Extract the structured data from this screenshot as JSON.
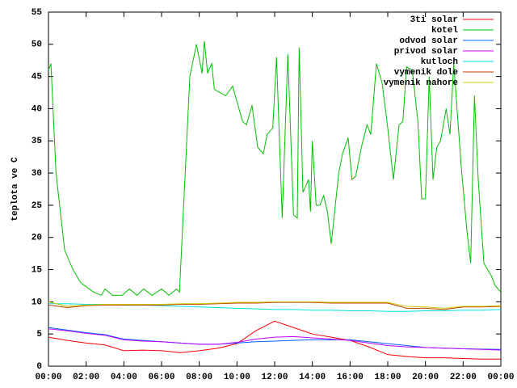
{
  "chart_data": {
    "type": "line",
    "ylabel": "teplota ve C",
    "x": [
      0,
      1,
      2,
      3,
      4,
      5,
      6,
      7,
      8,
      9,
      10,
      11,
      12,
      13,
      14,
      15,
      16,
      17,
      18,
      19,
      20,
      21,
      22,
      23,
      24
    ],
    "xlim": [
      0,
      24
    ],
    "xticks": [
      {
        "value": 0,
        "label": "00:00"
      },
      {
        "value": 2,
        "label": "02:00"
      },
      {
        "value": 4,
        "label": "04:00"
      },
      {
        "value": 6,
        "label": "06:00"
      },
      {
        "value": 8,
        "label": "08:00"
      },
      {
        "value": 10,
        "label": "10:00"
      },
      {
        "value": 12,
        "label": "12:00"
      },
      {
        "value": 14,
        "label": "14:00"
      },
      {
        "value": 16,
        "label": "16:00"
      },
      {
        "value": 18,
        "label": "18:00"
      },
      {
        "value": 20,
        "label": "20:00"
      },
      {
        "value": 22,
        "label": "22:00"
      },
      {
        "value": 24,
        "label": "00:00"
      }
    ],
    "ylim": [
      0,
      55
    ],
    "yticks": [
      0,
      5,
      10,
      15,
      20,
      25,
      30,
      35,
      40,
      45,
      50,
      55
    ],
    "legend": "top-right",
    "series": [
      {
        "name": "3ti solar",
        "color": "#ff0000",
        "values": [
          4.5,
          4,
          3.6,
          3.3,
          2.4,
          2.5,
          2.4,
          2.1,
          2.4,
          2.8,
          3.5,
          5.5,
          7,
          6,
          5,
          4.5,
          4,
          3,
          1.8,
          1.5,
          1.3,
          1.3,
          1.2,
          1.1,
          1.1
        ]
      },
      {
        "name": "kotel",
        "color": "#00c000",
        "x": [
          0,
          0.13,
          0.4,
          0.86,
          1.3,
          1.7,
          2.4,
          2.8,
          3.0,
          3.4,
          3.9,
          4.3,
          4.7,
          5.05,
          5.5,
          6.0,
          6.4,
          6.8,
          6.95,
          7.5,
          7.85,
          8.15,
          8.27,
          8.44,
          8.66,
          8.8,
          9.4,
          9.77,
          10.3,
          10.5,
          10.8,
          11.1,
          11.4,
          11.6,
          11.9,
          12.1,
          12.4,
          12.7,
          13.0,
          13.2,
          13.3,
          13.5,
          13.8,
          13.9,
          14.0,
          14.2,
          14.4,
          14.6,
          14.8,
          15.0,
          15.4,
          15.6,
          15.9,
          16.1,
          16.3,
          16.6,
          16.9,
          17.1,
          17.4,
          17.7,
          18.0,
          18.3,
          18.6,
          18.8,
          19.0,
          19.3,
          19.6,
          19.8,
          20.0,
          20.2,
          20.4,
          20.6,
          20.8,
          21.1,
          21.3,
          21.5,
          21.9,
          22.2,
          22.4,
          22.6,
          22.8,
          23.1,
          23.5,
          23.7,
          24.0
        ],
        "values": [
          46,
          47,
          30,
          18,
          15,
          13,
          11.5,
          11,
          12,
          11,
          11,
          12,
          11,
          12,
          11,
          12,
          11,
          12,
          11.5,
          45,
          50,
          45.5,
          50.5,
          45.5,
          47,
          43,
          42,
          43.5,
          38,
          37.5,
          40.5,
          34,
          33,
          36,
          37,
          48,
          23,
          48.5,
          23.5,
          23,
          49.5,
          27,
          29,
          24,
          35,
          25,
          25,
          26.5,
          24,
          19,
          30,
          33,
          35.5,
          29,
          29.5,
          34,
          37.5,
          36,
          47,
          44,
          37,
          29,
          37.5,
          38,
          46.5,
          46,
          38,
          26,
          26,
          45,
          29,
          34,
          35,
          40,
          36,
          47,
          31,
          21,
          16,
          42,
          29,
          16,
          14,
          12.5,
          11.5
        ]
      },
      {
        "name": "odvod solar",
        "color": "#0060ff",
        "values": [
          6,
          5.6,
          5.2,
          4.9,
          4.2,
          4,
          3.8,
          3.6,
          3.4,
          3.4,
          3.6,
          3.8,
          3.9,
          4,
          4.1,
          4.1,
          4.1,
          3.8,
          3.5,
          3.2,
          2.9,
          2.8,
          2.7,
          2.65,
          2.6
        ]
      },
      {
        "name": "privod solar",
        "color": "#c000ff",
        "values": [
          5.8,
          5.5,
          5.1,
          4.8,
          4.1,
          3.9,
          3.8,
          3.6,
          3.4,
          3.4,
          3.7,
          4.2,
          4.5,
          4.6,
          4.4,
          4.2,
          4,
          3.6,
          3.2,
          3,
          2.9,
          2.8,
          2.7,
          2.6,
          2.5
        ]
      },
      {
        "name": "kutloch",
        "color": "#00e0e0",
        "values": [
          9.7,
          9.7,
          9.6,
          9.6,
          9.5,
          9.5,
          9.4,
          9.3,
          9.2,
          9.1,
          9,
          8.9,
          8.8,
          8.8,
          8.7,
          8.7,
          8.6,
          8.6,
          8.5,
          8.5,
          8.6,
          8.6,
          8.7,
          8.7,
          8.8
        ]
      },
      {
        "name": "vymenik dole",
        "color": "#c04000",
        "values": [
          9.5,
          9.1,
          9.4,
          9.5,
          9.5,
          9.5,
          9.5,
          9.6,
          9.6,
          9.7,
          9.8,
          9.8,
          9.9,
          9.9,
          9.9,
          9.8,
          9.8,
          9.8,
          9.8,
          9.0,
          9.0,
          8.8,
          9.2,
          9.2,
          9.3
        ]
      },
      {
        "name": "vymenik nahore",
        "color": "#c8c800",
        "values": [
          10,
          9.3,
          9.5,
          9.6,
          9.6,
          9.6,
          9.6,
          9.7,
          9.7,
          9.8,
          9.9,
          9.9,
          10,
          10,
          10,
          9.9,
          9.9,
          9.9,
          9.9,
          9.3,
          9.2,
          9.0,
          9.3,
          9.3,
          9.4
        ]
      }
    ]
  }
}
